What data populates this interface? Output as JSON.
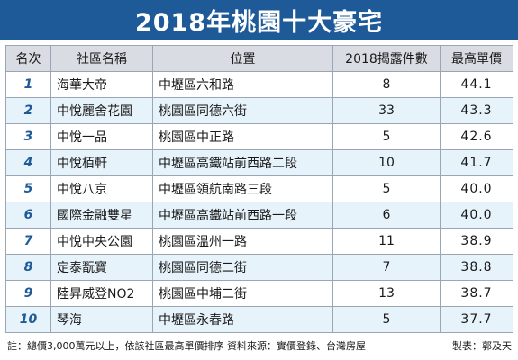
{
  "title": "2018年桃園十大豪宅",
  "table": {
    "headers": [
      "名次",
      "社區名稱",
      "位置",
      "2018揭露件數",
      "最高單價"
    ],
    "rows": [
      {
        "rank": "1",
        "name": "海華大帝",
        "location": "中壢區六和路",
        "count": "8",
        "price": "44.1"
      },
      {
        "rank": "2",
        "name": "中悅麗舍花園",
        "location": "桃園區同德六街",
        "count": "33",
        "price": "43.3"
      },
      {
        "rank": "3",
        "name": "中悅一品",
        "location": "桃園區中正路",
        "count": "5",
        "price": "42.6"
      },
      {
        "rank": "4",
        "name": "中悅栢軒",
        "location": "中壢區高鐵站前西路二段",
        "count": "10",
        "price": "41.7"
      },
      {
        "rank": "5",
        "name": "中悅八京",
        "location": "中壢區領航南路三段",
        "count": "5",
        "price": "40.0"
      },
      {
        "rank": "6",
        "name": "國際金融雙星",
        "location": "中壢區高鐵站前西路一段",
        "count": "6",
        "price": "40.0"
      },
      {
        "rank": "7",
        "name": "中悅中央公園",
        "location": "桃園區溫州一路",
        "count": "11",
        "price": "38.9"
      },
      {
        "rank": "8",
        "name": "定泰翫寶",
        "location": "桃園區同德二街",
        "count": "7",
        "price": "38.8"
      },
      {
        "rank": "9",
        "name": "陸昇威登NO2",
        "location": "桃園區中埔二街",
        "count": "13",
        "price": "38.7"
      },
      {
        "rank": "10",
        "name": "琴海",
        "location": "中壢區永春路",
        "count": "5",
        "price": "37.7"
      }
    ]
  },
  "footer": {
    "note": "註：總價3,000萬元以上，依該社區最高單價排序 資料來源：實價登錄、台灣房屋",
    "credit": "製表：郭及天"
  },
  "colors": {
    "title_bg": "#1f5a98",
    "header_bg": "#d9dde3",
    "stripe": "#e7f3fb",
    "rank": "#1f5a98"
  }
}
